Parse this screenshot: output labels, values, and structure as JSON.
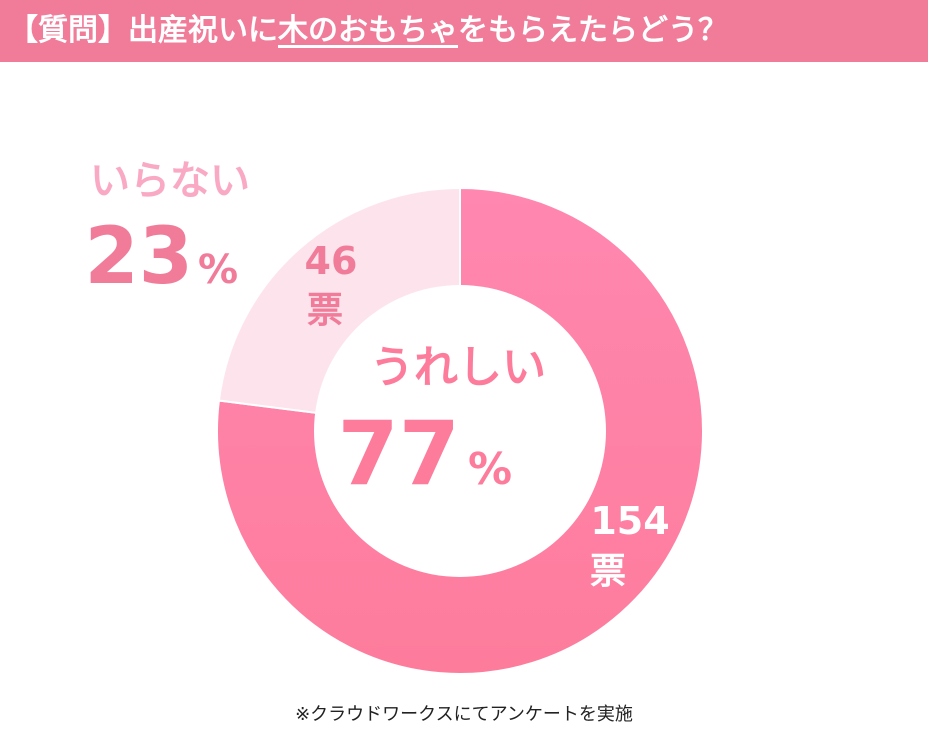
{
  "header": {
    "prefix": "【質問】出産祝いに",
    "highlight": "木のおもちゃ",
    "suffix": "をもらえたらどう？"
  },
  "chart_data": {
    "type": "pie",
    "donut": true,
    "slices": [
      {
        "label": "うれしい",
        "percent": 77,
        "votes": 154,
        "vote_unit": "票",
        "color": "#fd7c9c"
      },
      {
        "label": "いらない",
        "percent": 23,
        "votes": 46,
        "vote_unit": "票",
        "color": "#fde3ec"
      }
    ],
    "percent_sign": "%",
    "colors": {
      "main": "#fd7c9c",
      "main_light": "#ff87b0",
      "minor": "#fde3ec",
      "minor_label": "#f9a9c4"
    }
  },
  "footer": {
    "note": "※クラウドワークスにてアンケートを実施"
  }
}
